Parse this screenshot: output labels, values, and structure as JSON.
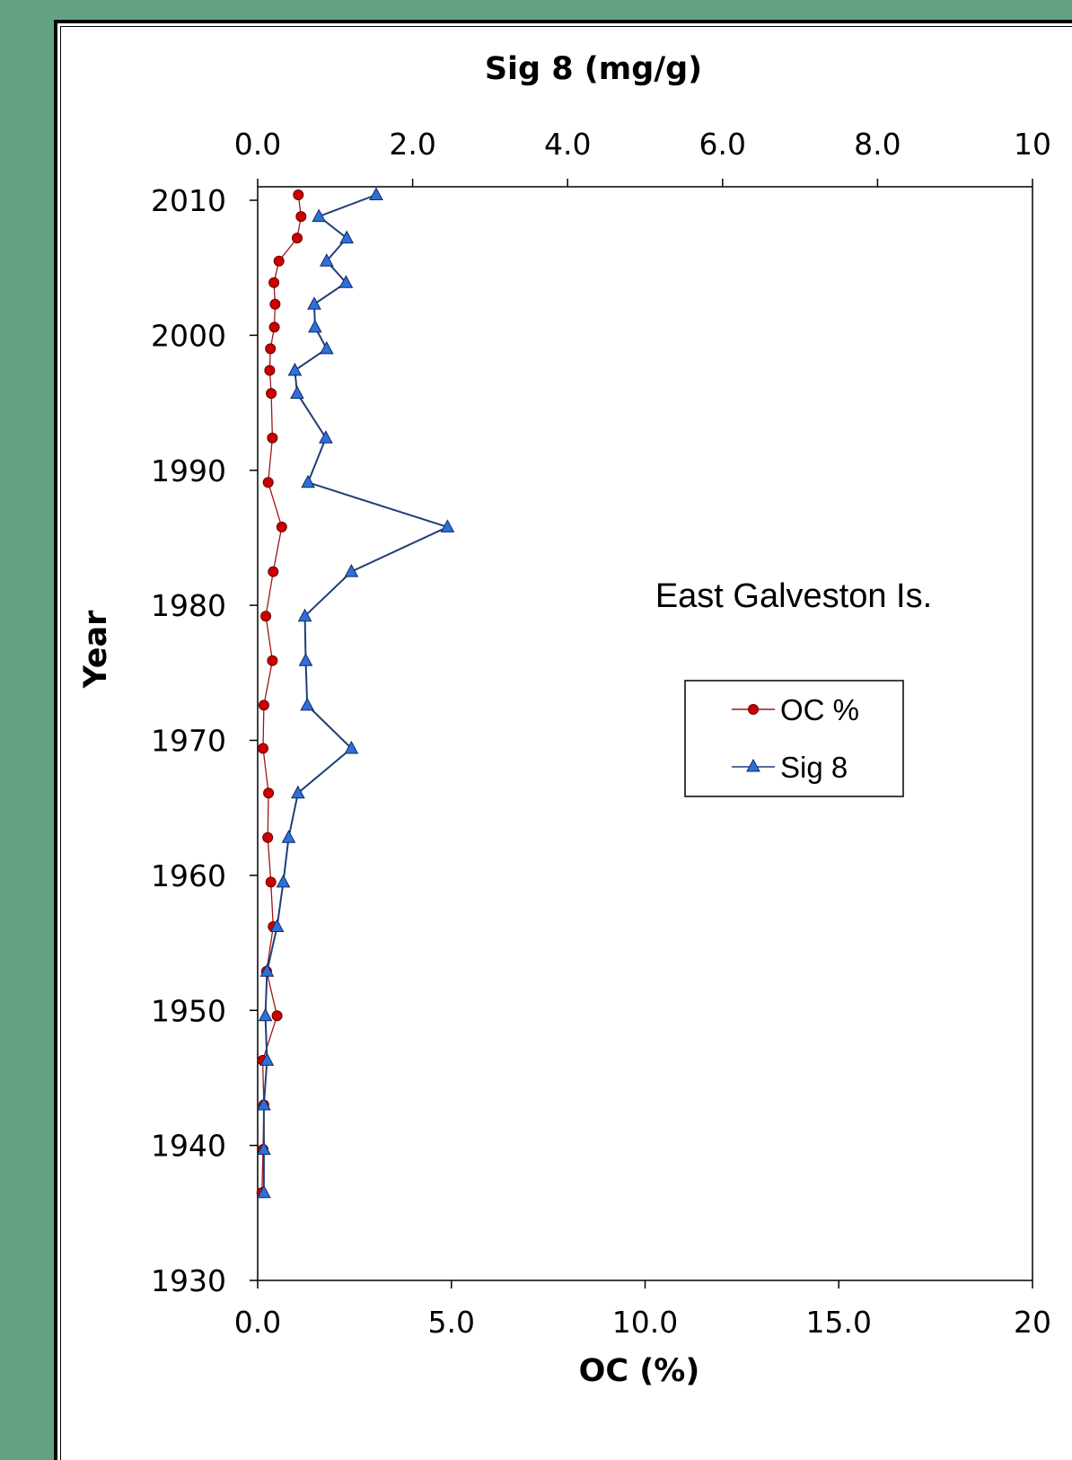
{
  "chart_data": {
    "type": "line",
    "orientation": "vertical-profile",
    "annotation": "East Galveston Is.",
    "y_axis": {
      "label": "Year",
      "ylim": [
        1930,
        2010
      ],
      "ticks": [
        "1930",
        "1940",
        "1950",
        "1960",
        "1970",
        "1980",
        "1990",
        "2000",
        "2010"
      ]
    },
    "x_axis_bottom": {
      "label": "OC (%)",
      "xlim": [
        0,
        20
      ],
      "ticks": [
        "0.0",
        "5.0",
        "10.0",
        "15.0",
        "20"
      ]
    },
    "x_axis_top": {
      "label": "Sig 8 (mg/g)",
      "xlim": [
        0,
        10
      ],
      "ticks": [
        "0.0",
        "2.0",
        "4.0",
        "6.0",
        "8.0",
        "10"
      ]
    },
    "legend": {
      "position": "right-center",
      "entries": [
        "OC %",
        "Sig 8"
      ]
    },
    "series": [
      {
        "name": "OC %",
        "axis": "bottom",
        "color": "#cc0000",
        "line_color": "#a11616",
        "marker": "circle",
        "points": [
          [
            1.05,
            2010.4
          ],
          [
            1.12,
            2008.8
          ],
          [
            1.02,
            2007.2
          ],
          [
            0.55,
            2005.5
          ],
          [
            0.42,
            2003.9
          ],
          [
            0.45,
            2002.3
          ],
          [
            0.43,
            2000.6
          ],
          [
            0.33,
            1999.0
          ],
          [
            0.31,
            1997.4
          ],
          [
            0.35,
            1995.7
          ],
          [
            0.38,
            1992.4
          ],
          [
            0.27,
            1989.1
          ],
          [
            0.62,
            1985.8
          ],
          [
            0.4,
            1982.5
          ],
          [
            0.21,
            1979.2
          ],
          [
            0.38,
            1975.9
          ],
          [
            0.16,
            1972.6
          ],
          [
            0.14,
            1969.4
          ],
          [
            0.28,
            1966.1
          ],
          [
            0.26,
            1962.8
          ],
          [
            0.34,
            1959.5
          ],
          [
            0.4,
            1956.2
          ],
          [
            0.23,
            1952.9
          ],
          [
            0.5,
            1949.6
          ],
          [
            0.13,
            1946.3
          ],
          [
            0.16,
            1943.0
          ],
          [
            0.14,
            1939.7
          ],
          [
            0.11,
            1936.5
          ]
        ]
      },
      {
        "name": "Sig 8",
        "axis": "top",
        "color": "#2f6fd8",
        "line_color": "#1f3f75",
        "marker": "triangle",
        "points": [
          [
            1.53,
            2010.4
          ],
          [
            0.79,
            2008.8
          ],
          [
            1.15,
            2007.2
          ],
          [
            0.89,
            2005.5
          ],
          [
            1.14,
            2003.9
          ],
          [
            0.73,
            2002.3
          ],
          [
            0.74,
            2000.6
          ],
          [
            0.89,
            1999.0
          ],
          [
            0.48,
            1997.4
          ],
          [
            0.51,
            1995.7
          ],
          [
            0.88,
            1992.4
          ],
          [
            0.65,
            1989.1
          ],
          [
            2.45,
            1985.8
          ],
          [
            1.21,
            1982.5
          ],
          [
            0.61,
            1979.2
          ],
          [
            0.62,
            1975.9
          ],
          [
            0.64,
            1972.6
          ],
          [
            1.21,
            1969.4
          ],
          [
            0.52,
            1966.1
          ],
          [
            0.4,
            1962.8
          ],
          [
            0.33,
            1959.5
          ],
          [
            0.25,
            1956.2
          ],
          [
            0.12,
            1952.9
          ],
          [
            0.1,
            1949.6
          ],
          [
            0.12,
            1946.3
          ],
          [
            0.08,
            1943.0
          ],
          [
            0.08,
            1939.7
          ],
          [
            0.08,
            1936.5
          ]
        ]
      }
    ]
  }
}
